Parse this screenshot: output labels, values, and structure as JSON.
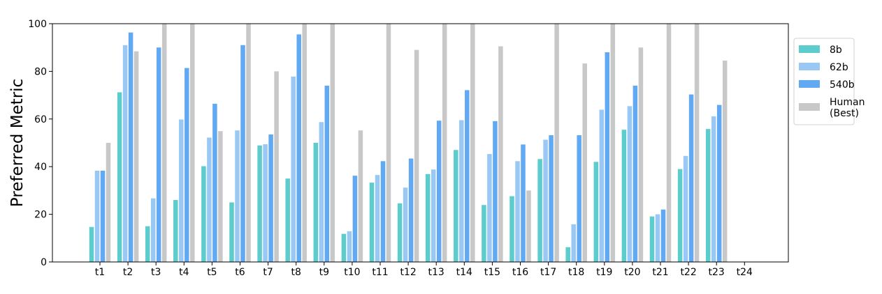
{
  "chart_data": {
    "type": "bar",
    "title": "",
    "xlabel": "",
    "ylabel": "Preferred Metric",
    "ylim": [
      0,
      100
    ],
    "yticks": [
      0,
      20,
      40,
      60,
      80,
      100
    ],
    "grid": false,
    "legend_position": "right, outside plot",
    "categories": [
      "t1",
      "t2",
      "t3",
      "t4",
      "t5",
      "t6",
      "t7",
      "t8",
      "t9",
      "t10",
      "t11",
      "t12",
      "t13",
      "t14",
      "t15",
      "t16",
      "t17",
      "t18",
      "t19",
      "t20",
      "t21",
      "t22",
      "t23",
      "t24"
    ],
    "series": [
      {
        "name": "8b",
        "color": "#5ccccc",
        "values": [
          14.7,
          71.2,
          15.0,
          26.0,
          40.2,
          25.0,
          48.9,
          35.0,
          50.0,
          11.8,
          33.3,
          24.6,
          36.9,
          47.0,
          23.9,
          27.6,
          43.2,
          6.2,
          42.0,
          55.5,
          19.1,
          39.0,
          55.8,
          null
        ]
      },
      {
        "name": "62b",
        "color": "#99c8f5",
        "values": [
          38.3,
          91.0,
          26.7,
          59.8,
          52.2,
          55.2,
          49.4,
          77.8,
          58.7,
          12.9,
          36.5,
          31.2,
          38.8,
          59.5,
          45.3,
          42.3,
          51.3,
          15.8,
          63.9,
          65.4,
          20.0,
          44.5,
          61.1,
          null
        ]
      },
      {
        "name": "540b",
        "color": "#61a9f2",
        "values": [
          38.3,
          96.3,
          90.0,
          81.4,
          66.4,
          91.0,
          53.5,
          95.5,
          74.0,
          36.2,
          42.3,
          43.4,
          59.3,
          72.1,
          59.1,
          49.3,
          53.2,
          53.2,
          88.0,
          74.0,
          22.0,
          70.3,
          65.9,
          null
        ]
      },
      {
        "name": "Human\n(Best)",
        "color": "#c8c8c8",
        "values": [
          50.0,
          88.4,
          100.0,
          100.0,
          54.9,
          100.0,
          80.0,
          100.0,
          100.0,
          55.2,
          100.0,
          89.0,
          100.0,
          100.0,
          90.5,
          30.0,
          100.0,
          83.3,
          100.0,
          90.0,
          100.0,
          100.0,
          84.5,
          null
        ]
      }
    ]
  }
}
